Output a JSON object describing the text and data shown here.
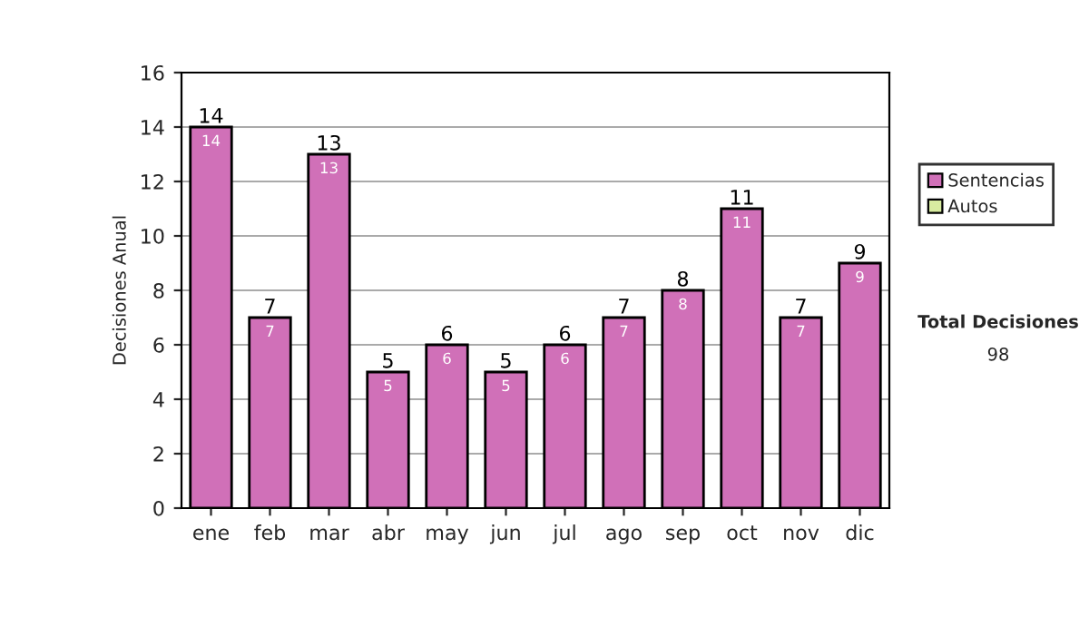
{
  "chart_data": {
    "type": "bar",
    "ylabel": "Decisiones Anual",
    "categories": [
      "ene",
      "feb",
      "mar",
      "abr",
      "may",
      "jun",
      "jul",
      "ago",
      "sep",
      "oct",
      "nov",
      "dic"
    ],
    "series": [
      {
        "name": "Sentencias",
        "color": "#d070b8",
        "values": [
          14,
          7,
          13,
          5,
          6,
          5,
          6,
          7,
          8,
          11,
          7,
          9
        ],
        "value_labels": [
          "14",
          "7",
          "13",
          "5",
          "6",
          "5",
          "6",
          "7",
          "8",
          "11",
          "7",
          "9"
        ]
      },
      {
        "name": "Autos",
        "color": "#d8eca0",
        "values": [
          null,
          null,
          null,
          null,
          null,
          null,
          null,
          null,
          null,
          null,
          null,
          null
        ]
      }
    ],
    "ylim": [
      0,
      16
    ],
    "yticks": [
      0,
      2,
      4,
      6,
      8,
      10,
      12,
      14,
      16
    ],
    "grid": "y",
    "legend": "right",
    "annotations": [
      "Total Decisiones",
      "98",
      {
        "text": "14",
        "x": "ene",
        "y": 14
      },
      {
        "text": "7",
        "x": "feb",
        "y": 7
      },
      {
        "text": "13",
        "x": "mar",
        "y": 13
      },
      {
        "text": "5",
        "x": "abr",
        "y": 5
      },
      {
        "text": "6",
        "x": "may",
        "y": 6
      },
      {
        "text": "5",
        "x": "jun",
        "y": 5
      },
      {
        "text": "6",
        "x": "jul",
        "y": 6
      },
      {
        "text": "7",
        "x": "ago",
        "y": 7
      },
      {
        "text": "8",
        "x": "sep",
        "y": 8
      },
      {
        "text": "11",
        "x": "oct",
        "y": 11
      },
      {
        "text": "7",
        "x": "nov",
        "y": 7
      },
      {
        "text": "9",
        "x": "dic",
        "y": 9
      }
    ]
  }
}
